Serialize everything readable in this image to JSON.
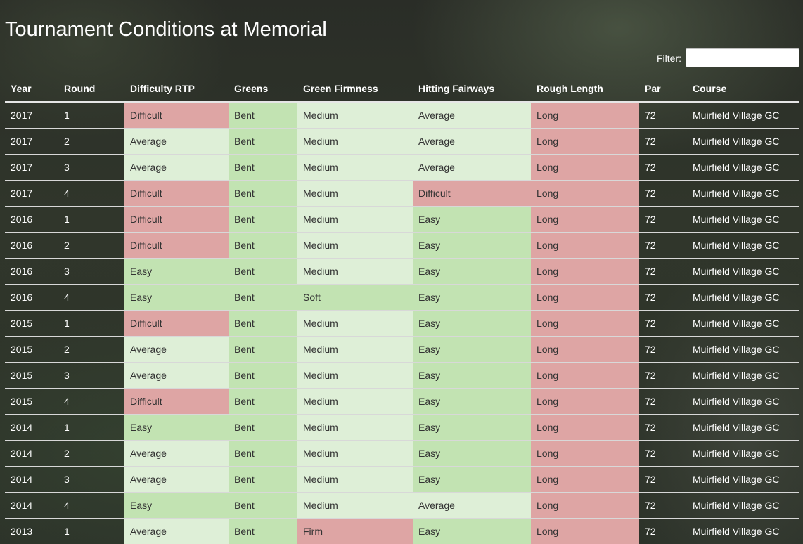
{
  "title": "Tournament Conditions at Memorial",
  "filter": {
    "label": "Filter:",
    "value": "",
    "placeholder": ""
  },
  "colors": {
    "difficult": "#dea5a4",
    "easy": "#c2e3b2",
    "average": "#deefd7"
  },
  "table": {
    "columns": [
      "Year",
      "Round",
      "Difficulty RTP",
      "Greens",
      "Green Firmness",
      "Hitting Fairways",
      "Rough Length",
      "Par",
      "Course"
    ],
    "rows": [
      [
        "2017",
        "1",
        "Difficult",
        "Bent",
        "Medium",
        "Average",
        "Long",
        "72",
        "Muirfield Village GC"
      ],
      [
        "2017",
        "2",
        "Average",
        "Bent",
        "Medium",
        "Average",
        "Long",
        "72",
        "Muirfield Village GC"
      ],
      [
        "2017",
        "3",
        "Average",
        "Bent",
        "Medium",
        "Average",
        "Long",
        "72",
        "Muirfield Village GC"
      ],
      [
        "2017",
        "4",
        "Difficult",
        "Bent",
        "Medium",
        "Difficult",
        "Long",
        "72",
        "Muirfield Village GC"
      ],
      [
        "2016",
        "1",
        "Difficult",
        "Bent",
        "Medium",
        "Easy",
        "Long",
        "72",
        "Muirfield Village GC"
      ],
      [
        "2016",
        "2",
        "Difficult",
        "Bent",
        "Medium",
        "Easy",
        "Long",
        "72",
        "Muirfield Village GC"
      ],
      [
        "2016",
        "3",
        "Easy",
        "Bent",
        "Medium",
        "Easy",
        "Long",
        "72",
        "Muirfield Village GC"
      ],
      [
        "2016",
        "4",
        "Easy",
        "Bent",
        "Soft",
        "Easy",
        "Long",
        "72",
        "Muirfield Village GC"
      ],
      [
        "2015",
        "1",
        "Difficult",
        "Bent",
        "Medium",
        "Easy",
        "Long",
        "72",
        "Muirfield Village GC"
      ],
      [
        "2015",
        "2",
        "Average",
        "Bent",
        "Medium",
        "Easy",
        "Long",
        "72",
        "Muirfield Village GC"
      ],
      [
        "2015",
        "3",
        "Average",
        "Bent",
        "Medium",
        "Easy",
        "Long",
        "72",
        "Muirfield Village GC"
      ],
      [
        "2015",
        "4",
        "Difficult",
        "Bent",
        "Medium",
        "Easy",
        "Long",
        "72",
        "Muirfield Village GC"
      ],
      [
        "2014",
        "1",
        "Easy",
        "Bent",
        "Medium",
        "Easy",
        "Long",
        "72",
        "Muirfield Village GC"
      ],
      [
        "2014",
        "2",
        "Average",
        "Bent",
        "Medium",
        "Easy",
        "Long",
        "72",
        "Muirfield Village GC"
      ],
      [
        "2014",
        "3",
        "Average",
        "Bent",
        "Medium",
        "Easy",
        "Long",
        "72",
        "Muirfield Village GC"
      ],
      [
        "2014",
        "4",
        "Easy",
        "Bent",
        "Medium",
        "Average",
        "Long",
        "72",
        "Muirfield Village GC"
      ],
      [
        "2013",
        "1",
        "Average",
        "Bent",
        "Firm",
        "Easy",
        "Long",
        "72",
        "Muirfield Village GC"
      ]
    ]
  }
}
